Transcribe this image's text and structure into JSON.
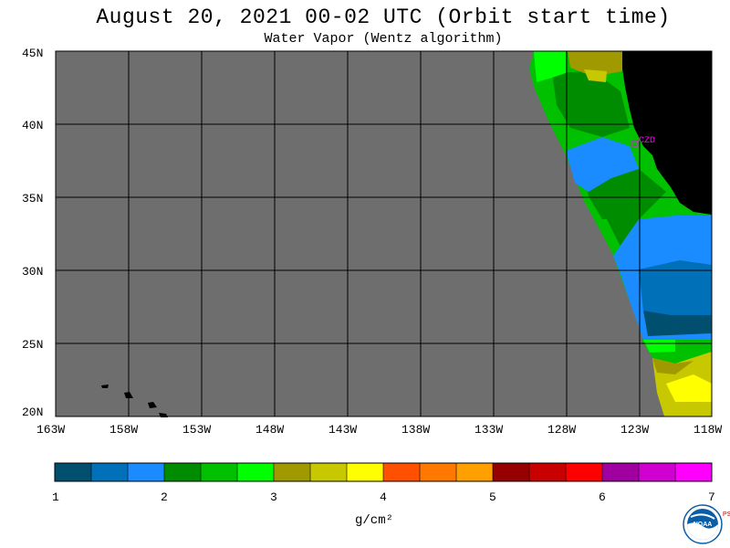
{
  "header": {
    "title": "August 20, 2021  00-02 UTC  (Orbit start time)",
    "subtitle": "Water Vapor (Wentz algorithm)"
  },
  "map": {
    "lat_labels": [
      "45N",
      "40N",
      "35N",
      "30N",
      "25N",
      "20N"
    ],
    "lon_labels": [
      "163W",
      "158W",
      "153W",
      "148W",
      "143W",
      "138W",
      "133W",
      "128W",
      "123W",
      "118W"
    ],
    "station_label": "CZD",
    "colors": {
      "no_data": "#6e6e6e",
      "land": "#000000",
      "grid": "#000000",
      "station": "#ff00ff"
    }
  },
  "colorbar": {
    "tick_labels": [
      "1",
      "2",
      "3",
      "4",
      "5",
      "6",
      "7"
    ],
    "unit_label": "g/cm²",
    "colors": [
      "#004f6e",
      "#0070b8",
      "#1a8cff",
      "#008c00",
      "#00c000",
      "#00ff00",
      "#a09a00",
      "#c8c800",
      "#ffff00",
      "#ff5000",
      "#ff7800",
      "#ffa000",
      "#960000",
      "#c80000",
      "#ff0000",
      "#a000a0",
      "#d000d0",
      "#ff00ff"
    ]
  },
  "logo": {
    "text": "NOAA",
    "side_text": "PSL"
  }
}
